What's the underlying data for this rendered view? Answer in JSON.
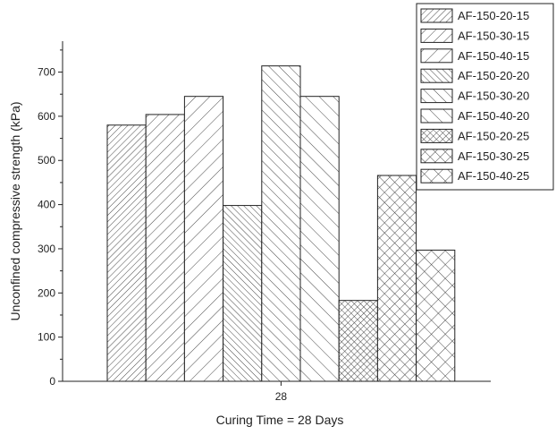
{
  "chart_data": {
    "type": "bar",
    "categories": [
      "28"
    ],
    "series": [
      {
        "name": "AF-150-20-15",
        "values": [
          580
        ],
        "pattern": "diag-ltr-fine"
      },
      {
        "name": "AF-150-30-15",
        "values": [
          604
        ],
        "pattern": "diag-ltr-medium"
      },
      {
        "name": "AF-150-40-15",
        "values": [
          645
        ],
        "pattern": "diag-ltr-wide"
      },
      {
        "name": "AF-150-20-20",
        "values": [
          398
        ],
        "pattern": "diag-rtl-fine"
      },
      {
        "name": "AF-150-30-20",
        "values": [
          714
        ],
        "pattern": "diag-rtl-medium"
      },
      {
        "name": "AF-150-40-20",
        "values": [
          645
        ],
        "pattern": "diag-rtl-wide"
      },
      {
        "name": "AF-150-20-25",
        "values": [
          183
        ],
        "pattern": "crosshatch-fine"
      },
      {
        "name": "AF-150-30-25",
        "values": [
          466
        ],
        "pattern": "crosshatch-medium"
      },
      {
        "name": "AF-150-40-25",
        "values": [
          297
        ],
        "pattern": "crosshatch-wide"
      }
    ],
    "xlabel": "Curing Time = 28 Days",
    "ylabel": "Unconfined compressive strength (kPa)",
    "ylim": [
      0,
      770
    ],
    "yticks": [
      0,
      100,
      200,
      300,
      400,
      500,
      600,
      700
    ],
    "grid": false,
    "legend_position": "top-right",
    "bar_fill_color": "#ffffff",
    "hatch_color": "#333333"
  }
}
